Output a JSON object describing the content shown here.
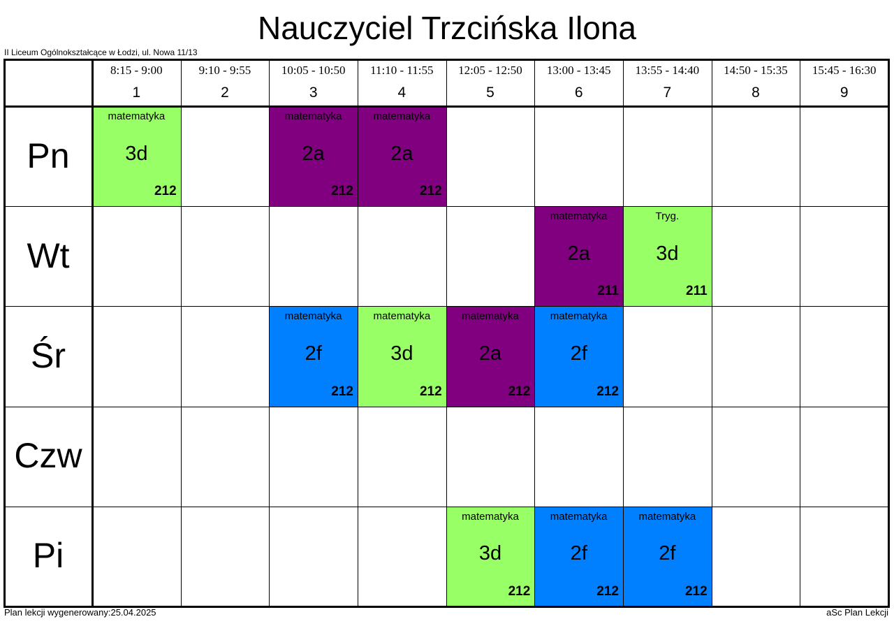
{
  "header": {
    "title": "Nauczyciel Trzcińska Ilona",
    "school": "II Liceum Ogólnokształcące w Łodzi, ul. Nowa 11/13"
  },
  "periods": [
    {
      "time": "8:15 - 9:00",
      "number": 1
    },
    {
      "time": "9:10 - 9:55",
      "number": 2
    },
    {
      "time": "10:05 - 10:50",
      "number": 3
    },
    {
      "time": "11:10 - 11:55",
      "number": 4
    },
    {
      "time": "12:05 - 12:50",
      "number": 5
    },
    {
      "time": "13:00 - 13:45",
      "number": 6
    },
    {
      "time": "13:55 - 14:40",
      "number": 7
    },
    {
      "time": "14:50 - 15:35",
      "number": 8
    },
    {
      "time": "15:45 - 16:30",
      "number": 9
    }
  ],
  "days": [
    {
      "name": "Pn",
      "cells": [
        {
          "subject": "matematyka",
          "class": "3d",
          "room": "212",
          "color": "#99ff66"
        },
        null,
        {
          "subject": "matematyka",
          "class": "2a",
          "room": "212",
          "color": "#800080"
        },
        {
          "subject": "matematyka",
          "class": "2a",
          "room": "212",
          "color": "#800080"
        },
        null,
        null,
        null,
        null,
        null
      ]
    },
    {
      "name": "Wt",
      "cells": [
        null,
        null,
        null,
        null,
        null,
        {
          "subject": "matematyka",
          "class": "2a",
          "room": "211",
          "color": "#800080"
        },
        {
          "subject": "Tryg.",
          "class": "3d",
          "room": "211",
          "color": "#99ff66"
        },
        null,
        null
      ]
    },
    {
      "name": "Śr",
      "cells": [
        null,
        null,
        {
          "subject": "matematyka",
          "class": "2f",
          "room": "212",
          "color": "#0080ff"
        },
        {
          "subject": "matematyka",
          "class": "3d",
          "room": "212",
          "color": "#99ff66"
        },
        {
          "subject": "matematyka",
          "class": "2a",
          "room": "212",
          "color": "#800080"
        },
        {
          "subject": "matematyka",
          "class": "2f",
          "room": "212",
          "color": "#0080ff"
        },
        null,
        null,
        null
      ]
    },
    {
      "name": "Czw",
      "cells": [
        null,
        null,
        null,
        null,
        null,
        null,
        null,
        null,
        null
      ]
    },
    {
      "name": "Pi",
      "cells": [
        null,
        null,
        null,
        null,
        {
          "subject": "matematyka",
          "class": "3d",
          "room": "212",
          "color": "#99ff66"
        },
        {
          "subject": "matematyka",
          "class": "2f",
          "room": "212",
          "color": "#0080ff"
        },
        {
          "subject": "matematyka",
          "class": "2f",
          "room": "212",
          "color": "#0080ff"
        },
        null,
        null
      ]
    }
  ],
  "footer": {
    "generated": "Plan lekcji wygenerowany:25.04.2025",
    "software": "aSc Plan Lekcji"
  }
}
